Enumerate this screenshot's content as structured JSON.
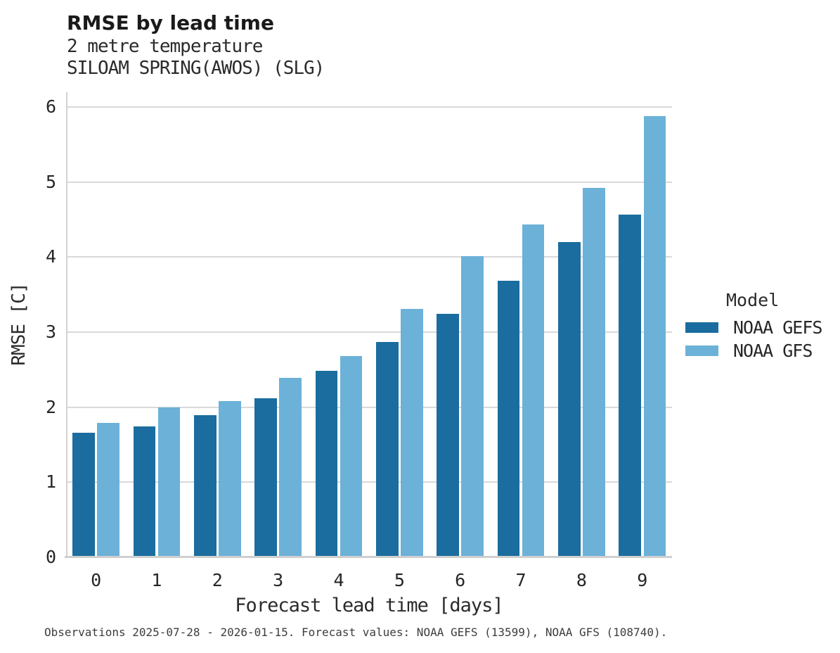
{
  "header": {
    "title": "RMSE by lead time",
    "subtitle_line1": "2 metre temperature",
    "subtitle_line2": "SILOAM SPRING(AWOS) (SLG)"
  },
  "legend": {
    "title": "Model",
    "items": [
      {
        "label": "NOAA GEFS",
        "color": "#1a6d9e"
      },
      {
        "label": "NOAA GFS",
        "color": "#6cb1d8"
      }
    ]
  },
  "footer": {
    "text": "Observations 2025-07-28 - 2026-01-15. Forecast values: NOAA GEFS (13599), NOAA GFS (108740)."
  },
  "chart_data": {
    "type": "bar",
    "title": "RMSE by lead time",
    "subtitle": [
      "2 metre temperature",
      "SILOAM SPRING(AWOS) (SLG)"
    ],
    "categories": [
      "0",
      "1",
      "2",
      "3",
      "4",
      "5",
      "6",
      "7",
      "8",
      "9"
    ],
    "series": [
      {
        "name": "NOAA GEFS",
        "color": "#1a6d9e",
        "values": [
          1.66,
          1.74,
          1.89,
          2.12,
          2.48,
          2.87,
          3.24,
          3.68,
          4.2,
          4.57
        ]
      },
      {
        "name": "NOAA GFS",
        "color": "#6cb1d8",
        "values": [
          1.79,
          2.0,
          2.08,
          2.39,
          2.68,
          3.31,
          4.01,
          4.43,
          4.92,
          5.88
        ]
      }
    ],
    "xlabel": "Forecast lead time [days]",
    "ylabel": "RMSE [C]",
    "ylim": [
      0,
      6
    ],
    "yticks": [
      0,
      1,
      2,
      3,
      4,
      5,
      6
    ],
    "grid": "horizontal",
    "legend_title": "Model",
    "legend_position": "right",
    "colors": {
      "grid": "#d9d9d9",
      "axis": "#cfcfcf",
      "text": "#262626"
    }
  }
}
